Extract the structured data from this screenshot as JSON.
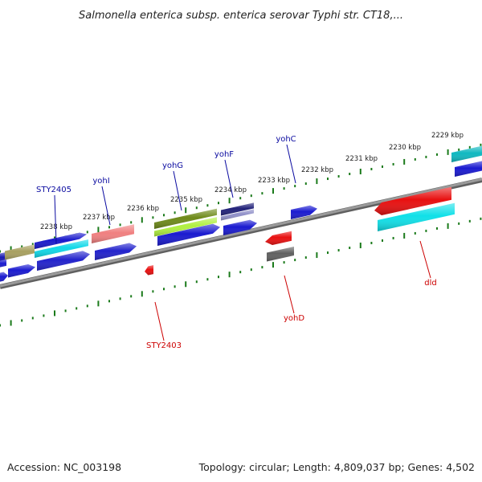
{
  "title": "Salmonella enterica subsp. enterica serovar Typhi str. CT18,...",
  "footer": {
    "accession": "Accession: NC_003198",
    "summary": "Topology: circular; Length: 4,809,037 bp; Genes: 4,502"
  },
  "colors": {
    "axis": "#808080",
    "ticks": "#1a7a1a",
    "label_top": "#0a0aa0",
    "label_bottom": "#cc0000"
  },
  "ticks": [
    {
      "label": "2238 kbp"
    },
    {
      "label": "2237 kbp"
    },
    {
      "label": "2236 kbp"
    },
    {
      "label": "2235 kbp"
    },
    {
      "label": "2234 kbp"
    },
    {
      "label": "2233 kbp"
    },
    {
      "label": "2232 kbp"
    },
    {
      "label": "2231 kbp"
    },
    {
      "label": "2230 kbp"
    },
    {
      "label": "2229 kbp"
    }
  ],
  "gene_labels": [
    {
      "text": "STY2405",
      "strand": "top"
    },
    {
      "text": "yohI",
      "strand": "top"
    },
    {
      "text": "yohG",
      "strand": "top"
    },
    {
      "text": "yohF",
      "strand": "top"
    },
    {
      "text": "yohC",
      "strand": "top"
    },
    {
      "text": "STY2403",
      "strand": "bottom"
    },
    {
      "text": "yohD",
      "strand": "bottom"
    },
    {
      "text": "dld",
      "strand": "bottom"
    }
  ],
  "features": [
    {
      "name": "feature-1",
      "color": "#1a1ab4"
    },
    {
      "name": "feature-2",
      "color": "#a8a060"
    },
    {
      "name": "feature-3",
      "color": "#1a1acc"
    },
    {
      "name": "feature-4",
      "color": "#10d8e8"
    },
    {
      "name": "feature-5",
      "color": "#f08080"
    },
    {
      "name": "feature-6",
      "color": "#2222cc"
    },
    {
      "name": "feature-7",
      "color": "#6e8a1a"
    },
    {
      "name": "feature-8",
      "color": "#b0f040"
    },
    {
      "name": "feature-9",
      "color": "#1a1ad0"
    },
    {
      "name": "feature-10",
      "color": "#22227a"
    },
    {
      "name": "feature-11",
      "color": "#9090c8"
    },
    {
      "name": "feature-12",
      "color": "#1a1ad0"
    },
    {
      "name": "feature-13",
      "color": "#1a1ad0"
    },
    {
      "name": "feature-14",
      "color": "#e81010"
    },
    {
      "name": "feature-15",
      "color": "#606060"
    },
    {
      "name": "feature-16",
      "color": "#e81010"
    },
    {
      "name": "feature-17",
      "color": "#10e0e8"
    },
    {
      "name": "feature-18",
      "color": "#10b8c0"
    },
    {
      "name": "feature-19",
      "color": "#1a1ad0"
    },
    {
      "name": "feature-20",
      "color": "#1a1ad0"
    },
    {
      "name": "feature-21",
      "color": "#1a1ad0"
    },
    {
      "name": "feature-22",
      "color": "#2222cc"
    },
    {
      "name": "feature-23",
      "color": "#1a1ad0"
    },
    {
      "name": "feature-24",
      "color": "#e81010"
    }
  ]
}
